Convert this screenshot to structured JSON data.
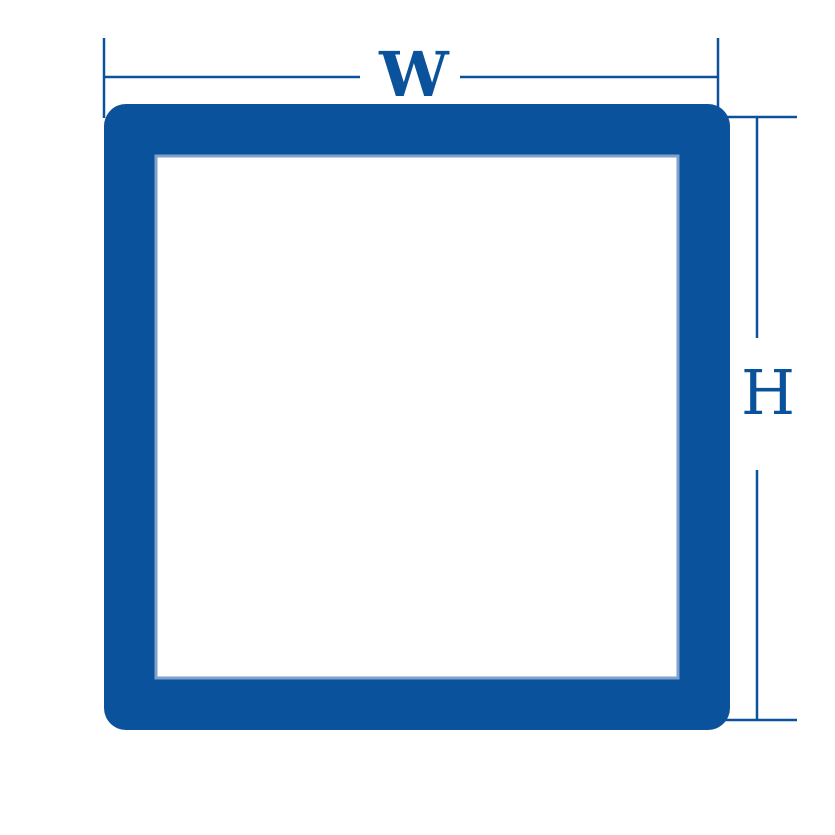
{
  "diagram": {
    "width_label": "W",
    "height_label": "H",
    "colors": {
      "profile": "#0a529c",
      "dimension_line": "#0a529c",
      "inner_fill": "#ffffff",
      "background": "#ffffff"
    }
  }
}
